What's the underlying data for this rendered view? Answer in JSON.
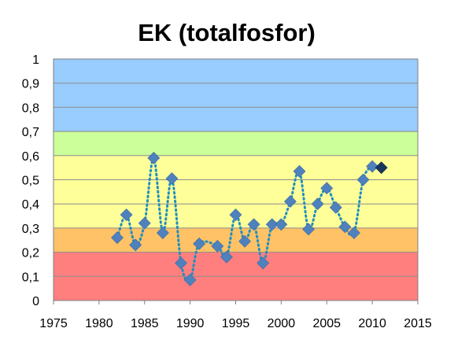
{
  "chart_data": {
    "type": "scatter",
    "title": "EK (totalfosfor)",
    "xlim": [
      1975,
      2015
    ],
    "ylim": [
      0,
      1
    ],
    "x_ticks": [
      1975,
      1980,
      1985,
      1990,
      1995,
      2000,
      2005,
      2010,
      2015
    ],
    "x_tick_labels": [
      "1975",
      "1980",
      "1985",
      "1990",
      "1995",
      "2000",
      "2005",
      "2010",
      "2015"
    ],
    "y_ticks": [
      0,
      0.1,
      0.2,
      0.3,
      0.4,
      0.5,
      0.6,
      0.7,
      0.8,
      0.9,
      1
    ],
    "y_tick_labels": [
      "0",
      "0,1",
      "0,2",
      "0,3",
      "0,4",
      "0,5",
      "0,6",
      "0,7",
      "0,8",
      "0,9",
      "1"
    ],
    "grid": true,
    "legend": "none",
    "background_bands": [
      {
        "from": 0.0,
        "to": 0.2,
        "color": "#ff7f7f"
      },
      {
        "from": 0.2,
        "to": 0.3,
        "color": "#ffc266"
      },
      {
        "from": 0.3,
        "to": 0.45,
        "color": "#ffff99"
      },
      {
        "from": 0.45,
        "to": 0.6,
        "color": "#ffff99"
      },
      {
        "from": 0.6,
        "to": 0.7,
        "color": "#ccff99"
      },
      {
        "from": 0.7,
        "to": 1.0,
        "color": "#99ccff"
      }
    ],
    "series": [
      {
        "marker": "diamond",
        "color": "#4f81bd",
        "highlight_last_color": "#17375e",
        "trend_line": "dotted smoothed",
        "trend_color": "#1f8fc0",
        "x": [
          1982,
          1983,
          1984,
          1985,
          1986,
          1987,
          1988,
          1989,
          1990,
          1991,
          1993,
          1994,
          1995,
          1996,
          1997,
          1998,
          1999,
          2000,
          2001,
          2002,
          2003,
          2004,
          2005,
          2006,
          2007,
          2008,
          2009,
          2010,
          2011
        ],
        "y": [
          0.26,
          0.355,
          0.23,
          0.32,
          0.59,
          0.28,
          0.505,
          0.155,
          0.085,
          0.235,
          0.225,
          0.18,
          0.355,
          0.245,
          0.315,
          0.155,
          0.315,
          0.315,
          0.41,
          0.535,
          0.295,
          0.4,
          0.465,
          0.385,
          0.305,
          0.28,
          0.5,
          0.555,
          0.55
        ]
      }
    ]
  }
}
